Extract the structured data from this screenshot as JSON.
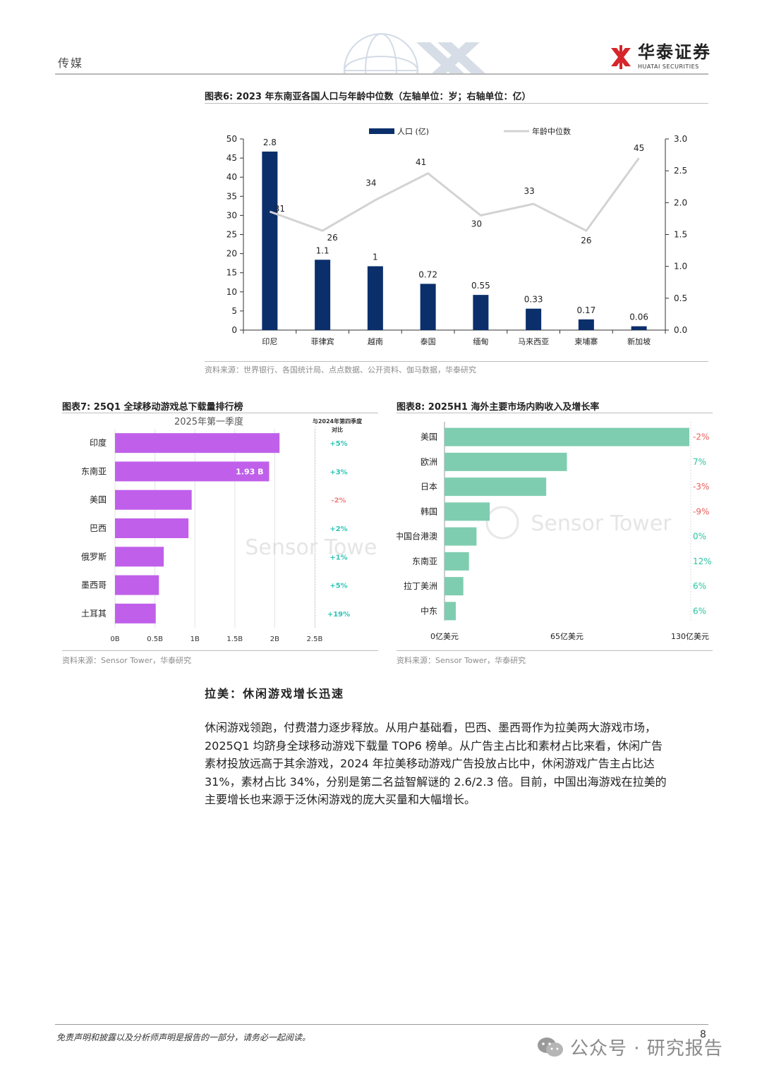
{
  "header": {
    "section": "传媒",
    "brand_cn": "华泰证券",
    "brand_en": "HUATAI SECURITIES"
  },
  "figure6": {
    "title": "图表6:  2023 年东南亚各国人口与年龄中位数（左轴单位：岁；右轴单位：亿）",
    "source": "资料来源：世界银行、各国统计局、点点数据、公开资料、伽马数据，华泰研究",
    "chart_data": {
      "type": "bar",
      "categories": [
        "印尼",
        "菲律宾",
        "越南",
        "泰国",
        "缅甸",
        "马来西亚",
        "柬埔寨",
        "新加坡"
      ],
      "series": [
        {
          "name": "人口 (亿)",
          "type": "bar",
          "axis": "right",
          "values": [
            2.8,
            1.1,
            1,
            0.72,
            0.55,
            0.33,
            0.17,
            0.06
          ],
          "labels": [
            "2.8",
            "1.1",
            "1",
            "0.72",
            "0.55",
            "0.33",
            "0.17",
            "0.06"
          ]
        },
        {
          "name": "年龄中位数",
          "type": "line",
          "axis": "left",
          "values": [
            31,
            26,
            34,
            41,
            30,
            33,
            26,
            45
          ]
        }
      ],
      "bar_heights_left_axis": [
        46.7,
        18.4,
        16.7,
        12.1,
        9.2,
        5.6,
        2.8,
        1.0
      ],
      "left_axis": {
        "min": 0,
        "max": 50,
        "ticks": [
          "0",
          "5",
          "10",
          "15",
          "20",
          "25",
          "30",
          "35",
          "40",
          "45",
          "50"
        ]
      },
      "right_axis": {
        "min": 0,
        "max": 3,
        "ticks": [
          "0.0",
          "0.5",
          "1.0",
          "1.5",
          "2.0",
          "2.5",
          "3.0"
        ]
      },
      "legend": "top",
      "colors": {
        "bar": "#0b2f6b",
        "line": "#d3d3d3"
      }
    }
  },
  "figure7": {
    "title": "图表7:  25Q1 全球移动游戏总下载量排行榜",
    "source": "资料来源：Sensor Tower，华泰研究",
    "watermark": "Sensor Tower",
    "chart_data": {
      "type": "bar",
      "orientation": "horizontal",
      "title": "2025年第一季度",
      "categories": [
        "印度",
        "东南亚",
        "美国",
        "巴西",
        "俄罗斯",
        "墨西哥",
        "土耳其"
      ],
      "values_billion": [
        2.06,
        1.93,
        0.96,
        0.92,
        0.61,
        0.55,
        0.51
      ],
      "value_label": {
        "index": 1,
        "text": "1.93 B"
      },
      "x_ticks": [
        "0B",
        "0.5B",
        "1B",
        "1.5B",
        "2B",
        "2.5B"
      ],
      "xlim": [
        0,
        2.5
      ],
      "change_header": [
        "与2024年第四季度",
        "对比"
      ],
      "changes": [
        "+5%",
        "+3%",
        "-2%",
        "+2%",
        "+1%",
        "+5%",
        "+19%"
      ],
      "colors": {
        "bar": "#c060ea",
        "positive": "#2ec4b6",
        "negative": "#f08080"
      }
    }
  },
  "figure8": {
    "title": "图表8:  2025H1 海外主要市场内购收入及增长率",
    "source": "资料来源：Sensor Tower，华泰研究",
    "watermark": "Sensor Tower",
    "chart_data": {
      "type": "bar",
      "orientation": "horizontal",
      "categories": [
        "美国",
        "欧洲",
        "日本",
        "韩国",
        "中国台港澳",
        "东南亚",
        "拉丁美洲",
        "中东"
      ],
      "values_100m_usd": [
        130,
        65,
        54,
        24,
        17,
        13,
        10,
        6
      ],
      "x_ticks": [
        "0亿美元",
        "65亿美元",
        "130亿美元"
      ],
      "xlim": [
        0,
        130
      ],
      "growth": [
        "-2%",
        "7%",
        "-3%",
        "-9%",
        "0%",
        "12%",
        "6%",
        "6%"
      ],
      "colors": {
        "bar": "#7fcdb0",
        "positive": "#2ec4a0",
        "negative": "#e8605a"
      }
    }
  },
  "section_heading": "拉美：休闲游戏增长迅速",
  "body_lines": [
    "休闲游戏领跑，付费潜力逐步释放。从用户基础看，巴西、墨西哥作为拉美两大游戏市场，",
    "2025Q1 均跻身全球移动游戏下载量 TOP6 榜单。从广告主占比和素材占比来看，休闲广告",
    "素材投放远高于其余游戏，2024 年拉美移动游戏广告投放占比中，休闲游戏广告主占比达",
    "31%，素材占比 34%，分别是第二名益智解谜的 2.6/2.3 倍。目前，中国出海游戏在拉美的",
    "主要增长也来源于泛休闲游戏的庞大买量和大幅增长。"
  ],
  "footer": {
    "disclaimer": "免责声明和披露以及分析师声明是报告的一部分，请务必一起阅读。",
    "page": "8",
    "watermark": "公众号 · 研究报告"
  }
}
